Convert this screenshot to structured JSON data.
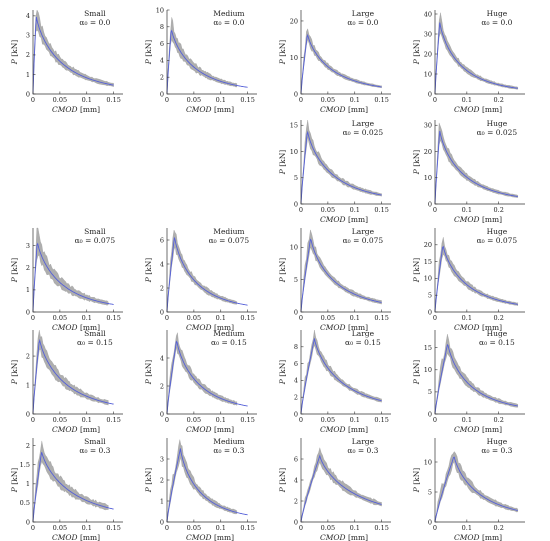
{
  "chart_data": [
    {
      "row": 0,
      "col": 0,
      "type": "line",
      "title": "Small",
      "subtitle": "α₀ = 0.0",
      "xlabel": "CMOD [mm]",
      "ylabel": "P [kN]",
      "xlim": [
        0,
        0.16
      ],
      "ylim": [
        0,
        4.3
      ],
      "xticks": [
        0,
        0.05,
        0.1,
        0.15
      ],
      "xtick_labels": [
        "0",
        "0.05",
        "0.1",
        "0.15"
      ],
      "yticks": [
        0,
        1,
        2,
        3,
        4
      ],
      "ytick_labels": [
        "0",
        "1",
        "2",
        "3",
        "4"
      ],
      "peak_x": 0.006,
      "peak_y": 4.0,
      "tail_x": 0.15,
      "tail_y": 0.4,
      "band_max_x": 0.15,
      "band_width": 0.12
    },
    {
      "row": 0,
      "col": 1,
      "type": "line",
      "title": "Medium",
      "subtitle": "α₀ = 0.0",
      "xlabel": "CMOD [mm]",
      "ylabel": "P [kN]",
      "xlim": [
        0,
        0.16
      ],
      "ylim": [
        0,
        10
      ],
      "xticks": [
        0,
        0.05,
        0.1,
        0.15
      ],
      "xtick_labels": [
        "0",
        "0.05",
        "0.1",
        "0.15"
      ],
      "yticks": [
        0,
        2,
        4,
        6,
        8,
        10
      ],
      "ytick_labels": [
        "0",
        "2",
        "4",
        "6",
        "8",
        "10"
      ],
      "peak_x": 0.008,
      "peak_y": 7.8,
      "tail_x": 0.15,
      "tail_y": 0.7,
      "band_max_x": 0.13,
      "band_width": 0.14
    },
    {
      "row": 0,
      "col": 2,
      "type": "line",
      "title": "Large",
      "subtitle": "α₀ = 0.0",
      "xlabel": "CMOD [mm]",
      "ylabel": "P [kN]",
      "xlim": [
        0,
        0.16
      ],
      "ylim": [
        0,
        23
      ],
      "xticks": [
        0,
        0.05,
        0.1,
        0.15
      ],
      "xtick_labels": [
        "0",
        "0.05",
        "0.1",
        "0.15"
      ],
      "yticks": [
        0,
        10,
        20
      ],
      "ytick_labels": [
        "0",
        "10",
        "20"
      ],
      "peak_x": 0.012,
      "peak_y": 16.5,
      "tail_x": 0.15,
      "tail_y": 1.7,
      "band_max_x": 0.15,
      "band_width": 0.09
    },
    {
      "row": 0,
      "col": 3,
      "type": "line",
      "title": "Huge",
      "subtitle": "α₀ = 0.0",
      "xlabel": "CMOD [mm]",
      "ylabel": "P [kN]",
      "xlim": [
        0,
        0.27
      ],
      "ylim": [
        0,
        42
      ],
      "xticks": [
        0,
        0.1,
        0.2
      ],
      "xtick_labels": [
        "0",
        "0.1",
        "0.2"
      ],
      "yticks": [
        0,
        10,
        20,
        30,
        40
      ],
      "ytick_labels": [
        "0",
        "10",
        "20",
        "30",
        "40"
      ],
      "peak_x": 0.015,
      "peak_y": 36,
      "tail_x": 0.26,
      "tail_y": 2.5,
      "band_max_x": 0.26,
      "band_width": 0.1
    },
    {
      "row": 1,
      "col": 2,
      "type": "line",
      "title": "Large",
      "subtitle": "α₀ = 0.025",
      "xlabel": "CMOD [mm]",
      "ylabel": "P [kN]",
      "xlim": [
        0,
        0.16
      ],
      "ylim": [
        0,
        16
      ],
      "xticks": [
        0,
        0.05,
        0.1,
        0.15
      ],
      "xtick_labels": [
        "0",
        "0.05",
        "0.1",
        "0.15"
      ],
      "yticks": [
        0,
        5,
        10,
        15
      ],
      "ytick_labels": [
        "0",
        "5",
        "10",
        "15"
      ],
      "peak_x": 0.012,
      "peak_y": 14,
      "tail_x": 0.15,
      "tail_y": 1.5,
      "band_max_x": 0.15,
      "band_width": 0.1
    },
    {
      "row": 1,
      "col": 3,
      "type": "line",
      "title": "Huge",
      "subtitle": "α₀ = 0.025",
      "xlabel": "CMOD [mm]",
      "ylabel": "P [kN]",
      "xlim": [
        0,
        0.27
      ],
      "ylim": [
        0,
        32
      ],
      "xticks": [
        0,
        0.1,
        0.2
      ],
      "xtick_labels": [
        "0",
        "0.1",
        "0.2"
      ],
      "yticks": [
        0,
        10,
        20,
        30
      ],
      "ytick_labels": [
        "0",
        "10",
        "20",
        "30"
      ],
      "peak_x": 0.015,
      "peak_y": 28,
      "tail_x": 0.26,
      "tail_y": 2.5,
      "band_max_x": 0.26,
      "band_width": 0.1
    },
    {
      "row": 2,
      "col": 0,
      "type": "line",
      "title": "Small",
      "subtitle": "α₀ = 0.075",
      "xlabel": "CMOD [mm]",
      "ylabel": "P [kN]",
      "xlim": [
        0,
        0.16
      ],
      "ylim": [
        0,
        3.8
      ],
      "xticks": [
        0,
        0.05,
        0.1,
        0.15
      ],
      "xtick_labels": [
        "0",
        "0.05",
        "0.1",
        "0.15"
      ],
      "yticks": [
        0,
        1,
        2,
        3
      ],
      "ytick_labels": [
        "0",
        "1",
        "2",
        "3"
      ],
      "peak_x": 0.008,
      "peak_y": 3.2,
      "tail_x": 0.15,
      "tail_y": 0.3,
      "band_max_x": 0.14,
      "band_width": 0.16
    },
    {
      "row": 2,
      "col": 1,
      "type": "line",
      "title": "Medium",
      "subtitle": "α₀ = 0.075",
      "xlabel": "CMOD [mm]",
      "ylabel": "P [kN]",
      "xlim": [
        0,
        0.16
      ],
      "ylim": [
        0,
        7
      ],
      "xticks": [
        0,
        0.05,
        0.1,
        0.15
      ],
      "xtick_labels": [
        "0",
        "0.05",
        "0.1",
        "0.15"
      ],
      "yticks": [
        0,
        2,
        4,
        6
      ],
      "ytick_labels": [
        "0",
        "2",
        "4",
        "6"
      ],
      "peak_x": 0.014,
      "peak_y": 6.3,
      "tail_x": 0.15,
      "tail_y": 0.5,
      "band_max_x": 0.13,
      "band_width": 0.12
    },
    {
      "row": 2,
      "col": 2,
      "type": "line",
      "title": "Large",
      "subtitle": "α₀ = 0.075",
      "xlabel": "CMOD [mm]",
      "ylabel": "P [kN]",
      "xlim": [
        0,
        0.16
      ],
      "ylim": [
        0,
        13
      ],
      "xticks": [
        0,
        0.05,
        0.1,
        0.15
      ],
      "xtick_labels": [
        "0",
        "0.05",
        "0.1",
        "0.15"
      ],
      "yticks": [
        0,
        5,
        10
      ],
      "ytick_labels": [
        "0",
        "5",
        "10"
      ],
      "peak_x": 0.018,
      "peak_y": 11.5,
      "tail_x": 0.15,
      "tail_y": 1.3,
      "band_max_x": 0.15,
      "band_width": 0.1
    },
    {
      "row": 2,
      "col": 3,
      "type": "line",
      "title": "Huge",
      "subtitle": "α₀ = 0.075",
      "xlabel": "CMOD [mm]",
      "ylabel": "P [kN]",
      "xlim": [
        0,
        0.27
      ],
      "ylim": [
        0,
        25
      ],
      "xticks": [
        0,
        0.1,
        0.2
      ],
      "xtick_labels": [
        "0",
        "0.1",
        "0.2"
      ],
      "yticks": [
        0,
        5,
        10,
        15,
        20
      ],
      "ytick_labels": [
        "0",
        "5",
        "10",
        "15",
        "20"
      ],
      "peak_x": 0.025,
      "peak_y": 20,
      "tail_x": 0.26,
      "tail_y": 2,
      "band_max_x": 0.26,
      "band_width": 0.1
    },
    {
      "row": 3,
      "col": 0,
      "type": "line",
      "title": "Small",
      "subtitle": "α₀ = 0.15",
      "xlabel": "CMOD [mm]",
      "ylabel": "P [kN]",
      "xlim": [
        0,
        0.16
      ],
      "ylim": [
        0,
        2.9
      ],
      "xticks": [
        0,
        0.05,
        0.1,
        0.15
      ],
      "xtick_labels": [
        "0",
        "0.05",
        "0.1",
        "0.15"
      ],
      "yticks": [
        0,
        1,
        2
      ],
      "ytick_labels": [
        "0",
        "1",
        "2"
      ],
      "peak_x": 0.012,
      "peak_y": 2.6,
      "tail_x": 0.15,
      "tail_y": 0.3,
      "band_max_x": 0.14,
      "band_width": 0.14
    },
    {
      "row": 3,
      "col": 1,
      "type": "line",
      "title": "Medium",
      "subtitle": "α₀ = 0.15",
      "xlabel": "CMOD [mm]",
      "ylabel": "P [kN]",
      "xlim": [
        0,
        0.16
      ],
      "ylim": [
        0,
        6
      ],
      "xticks": [
        0,
        0.05,
        0.1,
        0.15
      ],
      "xtick_labels": [
        "0",
        "0.05",
        "0.1",
        "0.15"
      ],
      "yticks": [
        0,
        2,
        4
      ],
      "ytick_labels": [
        "0",
        "2",
        "4"
      ],
      "peak_x": 0.018,
      "peak_y": 5.3,
      "tail_x": 0.15,
      "tail_y": 0.5,
      "band_max_x": 0.13,
      "band_width": 0.12
    },
    {
      "row": 3,
      "col": 2,
      "type": "line",
      "title": "Large",
      "subtitle": "α₀ = 0.15",
      "xlabel": "CMOD [mm]",
      "ylabel": "P [kN]",
      "xlim": [
        0,
        0.16
      ],
      "ylim": [
        0,
        10
      ],
      "xticks": [
        0,
        0.05,
        0.1,
        0.15
      ],
      "xtick_labels": [
        "0",
        "0.05",
        "0.1",
        "0.15"
      ],
      "yticks": [
        0,
        2,
        4,
        6,
        8
      ],
      "ytick_labels": [
        "0",
        "2",
        "4",
        "6",
        "8"
      ],
      "peak_x": 0.025,
      "peak_y": 9,
      "tail_x": 0.15,
      "tail_y": 1.4,
      "band_max_x": 0.15,
      "band_width": 0.08
    },
    {
      "row": 3,
      "col": 3,
      "type": "line",
      "title": "Huge",
      "subtitle": "α₀ = 0.15",
      "xlabel": "CMOD [mm]",
      "ylabel": "P [kN]",
      "xlim": [
        0,
        0.27
      ],
      "ylim": [
        0,
        19
      ],
      "xticks": [
        0,
        0.1,
        0.2
      ],
      "xtick_labels": [
        "0",
        "0.1",
        "0.2"
      ],
      "yticks": [
        0,
        5,
        10,
        15
      ],
      "ytick_labels": [
        "0",
        "5",
        "10",
        "15"
      ],
      "peak_x": 0.04,
      "peak_y": 16,
      "tail_x": 0.26,
      "tail_y": 1.6,
      "band_max_x": 0.26,
      "band_width": 0.12
    },
    {
      "row": 4,
      "col": 0,
      "type": "line",
      "title": "Small",
      "subtitle": "α₀ = 0.3",
      "xlabel": "CMOD [mm]",
      "ylabel": "P [kN]",
      "xlim": [
        0,
        0.16
      ],
      "ylim": [
        0,
        2.2
      ],
      "xticks": [
        0,
        0.05,
        0.1,
        0.15
      ],
      "xtick_labels": [
        "0",
        "0.05",
        "0.1",
        "0.15"
      ],
      "yticks": [
        0,
        0.5,
        1,
        1.5,
        2
      ],
      "ytick_labels": [
        "0",
        "0.5",
        "1",
        "1.5",
        "2"
      ],
      "peak_x": 0.016,
      "peak_y": 1.85,
      "tail_x": 0.15,
      "tail_y": 0.3,
      "band_max_x": 0.14,
      "band_width": 0.14
    },
    {
      "row": 4,
      "col": 1,
      "type": "line",
      "title": "Medium",
      "subtitle": "α₀ = 0.3",
      "xlabel": "CMOD [mm]",
      "ylabel": "P [kN]",
      "xlim": [
        0,
        0.16
      ],
      "ylim": [
        0,
        4
      ],
      "xticks": [
        0,
        0.05,
        0.1,
        0.15
      ],
      "xtick_labels": [
        "0",
        "0.05",
        "0.1",
        "0.15"
      ],
      "yticks": [
        0,
        1,
        2,
        3
      ],
      "ytick_labels": [
        "0",
        "1",
        "2",
        "3"
      ],
      "peak_x": 0.025,
      "peak_y": 3.5,
      "tail_x": 0.15,
      "tail_y": 0.3,
      "band_max_x": 0.13,
      "band_width": 0.12
    },
    {
      "row": 4,
      "col": 2,
      "type": "line",
      "title": "Large",
      "subtitle": "α₀ = 0.3",
      "xlabel": "CMOD [mm]",
      "ylabel": "P [kN]",
      "xlim": [
        0,
        0.16
      ],
      "ylim": [
        0,
        8
      ],
      "xticks": [
        0,
        0.05,
        0.1,
        0.15
      ],
      "xtick_labels": [
        "0",
        "0.05",
        "0.1",
        "0.15"
      ],
      "yticks": [
        0,
        2,
        4,
        6
      ],
      "ytick_labels": [
        "0",
        "2",
        "4",
        "6"
      ],
      "peak_x": 0.035,
      "peak_y": 6.3,
      "tail_x": 0.15,
      "tail_y": 1.5,
      "band_max_x": 0.15,
      "band_width": 0.1
    },
    {
      "row": 4,
      "col": 3,
      "type": "line",
      "title": "Huge",
      "subtitle": "α₀ = 0.3",
      "xlabel": "CMOD [mm]",
      "ylabel": "P [kN]",
      "xlim": [
        0,
        0.27
      ],
      "ylim": [
        0,
        14
      ],
      "xticks": [
        0,
        0.1,
        0.2
      ],
      "xtick_labels": [
        "0",
        "0.1",
        "0.2"
      ],
      "yticks": [
        0,
        5,
        10
      ],
      "ytick_labels": [
        "0",
        "5",
        "10"
      ],
      "peak_x": 0.06,
      "peak_y": 11,
      "tail_x": 0.26,
      "tail_y": 1.7,
      "band_max_x": 0.26,
      "band_width": 0.12
    }
  ]
}
